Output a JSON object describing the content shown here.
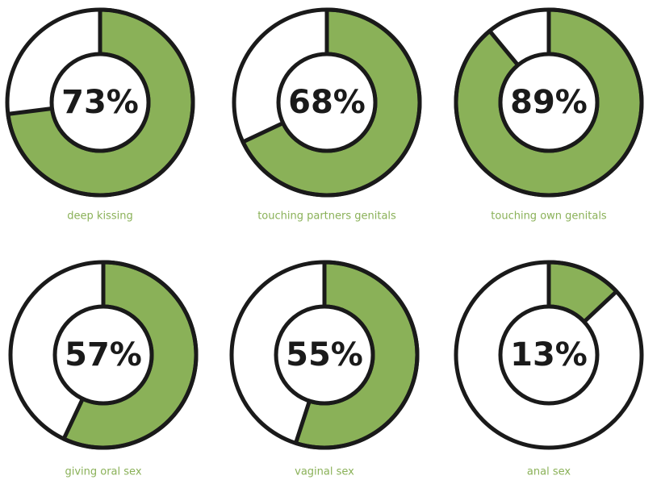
{
  "chart_data": [
    {
      "type": "donut",
      "title": "deep kissing",
      "values": [
        73
      ],
      "value_labels": [
        "73%"
      ],
      "color": "#8ab158"
    },
    {
      "type": "donut",
      "title": "touching partners genitals",
      "values": [
        68
      ],
      "value_labels": [
        "68%"
      ],
      "color": "#8ab158"
    },
    {
      "type": "donut",
      "title": "touching own genitals",
      "values": [
        89
      ],
      "value_labels": [
        "89%"
      ],
      "color": "#8ab158"
    },
    {
      "type": "donut",
      "title": "giving oral sex",
      "values": [
        57
      ],
      "value_labels": [
        "57%"
      ],
      "color": "#8ab158"
    },
    {
      "type": "donut",
      "title": "vaginal sex",
      "values": [
        55
      ],
      "value_labels": [
        "55%"
      ],
      "color": "#8ab158"
    },
    {
      "type": "donut",
      "title": "anal sex",
      "values": [
        13
      ],
      "value_labels": [
        "13%"
      ],
      "color": "#8ab158"
    }
  ]
}
